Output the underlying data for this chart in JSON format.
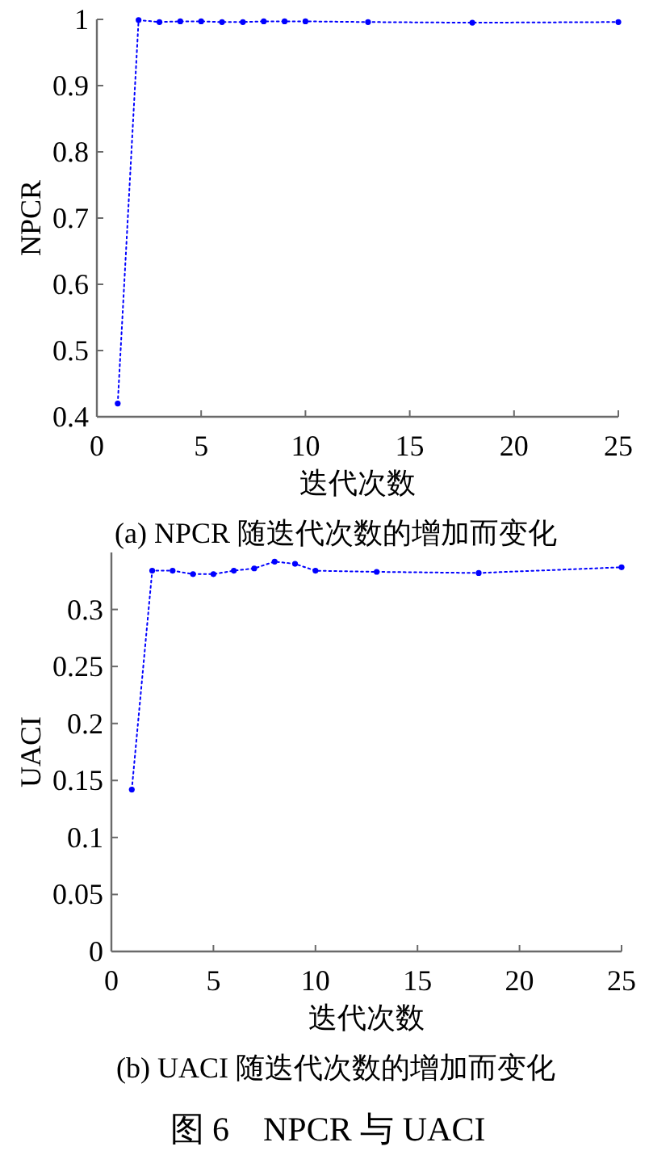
{
  "chart_data": [
    {
      "type": "line",
      "title": "(a) NPCR 随迭代次数的增加而变化",
      "xlabel": "迭代次数",
      "ylabel": "NPCR",
      "x": [
        1,
        2,
        3,
        4,
        5,
        6,
        7,
        8,
        9,
        10,
        13,
        18,
        25
      ],
      "series": [
        {
          "color": "#0000ff",
          "values": [
            0.42,
            0.999,
            0.996,
            0.997,
            0.997,
            0.996,
            0.996,
            0.997,
            0.997,
            0.997,
            0.996,
            0.995,
            0.996
          ]
        }
      ],
      "xlim": [
        0,
        25
      ],
      "xticks": [
        0,
        5,
        10,
        15,
        20,
        25
      ],
      "ylim": [
        0.4,
        1
      ],
      "yticks": [
        0.4,
        0.5,
        0.6,
        0.7,
        0.8,
        0.9,
        1
      ],
      "marker": "circle",
      "line_style": "dotted"
    },
    {
      "type": "line",
      "title": "(b) UACI 随迭代次数的增加而变化",
      "xlabel": "迭代次数",
      "ylabel": "UACI",
      "x": [
        1,
        2,
        3,
        4,
        5,
        6,
        7,
        8,
        9,
        10,
        13,
        18,
        25
      ],
      "series": [
        {
          "color": "#0000ff",
          "values": [
            0.142,
            0.334,
            0.334,
            0.331,
            0.331,
            0.334,
            0.336,
            0.342,
            0.34,
            0.334,
            0.333,
            0.332,
            0.337
          ]
        }
      ],
      "xlim": [
        0,
        25
      ],
      "xticks": [
        0,
        5,
        10,
        15,
        20,
        25
      ],
      "ylim": [
        0,
        0.35
      ],
      "yticks": [
        0,
        0.05,
        0.1,
        0.15,
        0.2,
        0.25,
        0.3
      ],
      "marker": "circle",
      "line_style": "dotted",
      "annotations": [
        "图 6　NPCR 与 UACI"
      ]
    }
  ]
}
